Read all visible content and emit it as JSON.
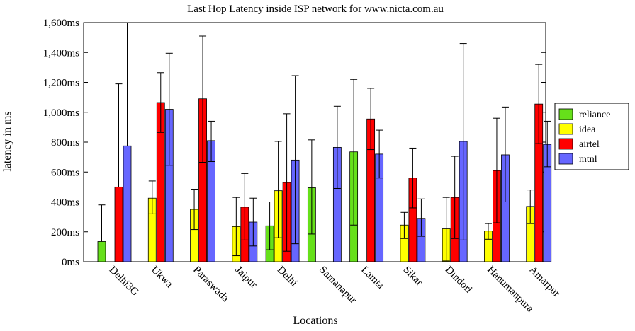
{
  "chart_data": {
    "type": "bar",
    "title": "Last Hop Latency inside ISP network for www.nicta.com.au",
    "xlabel": "Locations",
    "ylabel": "latency in ms",
    "ylim": [
      0,
      1600
    ],
    "yticks": [
      "0ms",
      "200ms",
      "400ms",
      "600ms",
      "800ms",
      "1,000ms",
      "1,200ms",
      "1,400ms",
      "1,600ms"
    ],
    "categories": [
      "Delhi3G",
      "Ukwa",
      "Paraswada",
      "Jaipur",
      "Delhi",
      "Samanapur",
      "Lamta",
      "Sikar",
      "Dindori",
      "Hanumanpura",
      "Amarpur"
    ],
    "legend_position": "right",
    "grid": false,
    "series": [
      {
        "name": "reliance",
        "color": "#66e01a",
        "values": [
          135,
          null,
          null,
          null,
          240,
          495,
          735,
          null,
          null,
          null,
          null
        ],
        "err_low": [
          null,
          null,
          null,
          null,
          80,
          185,
          245,
          null,
          null,
          null,
          null
        ],
        "err_high": [
          380,
          null,
          null,
          null,
          400,
          815,
          1220,
          null,
          null,
          null,
          null
        ]
      },
      {
        "name": "idea",
        "color": "#ffff00",
        "values": [
          null,
          425,
          350,
          235,
          475,
          null,
          null,
          245,
          220,
          205,
          370
        ],
        "err_low": [
          null,
          320,
          215,
          40,
          160,
          null,
          null,
          155,
          5,
          150,
          255
        ],
        "err_high": [
          null,
          540,
          485,
          430,
          805,
          null,
          null,
          330,
          430,
          255,
          480
        ]
      },
      {
        "name": "airtel",
        "color": "#ff0000",
        "values": [
          500,
          1065,
          1090,
          365,
          530,
          null,
          955,
          560,
          430,
          610,
          1055
        ],
        "err_low": [
          null,
          865,
          665,
          145,
          70,
          null,
          750,
          360,
          155,
          260,
          790
        ],
        "err_high": [
          1190,
          1265,
          1510,
          590,
          990,
          null,
          1160,
          760,
          705,
          960,
          1320
        ]
      },
      {
        "name": "mtnl",
        "color": "#6666ff",
        "values": [
          775,
          1020,
          810,
          265,
          680,
          765,
          720,
          290,
          805,
          715,
          785
        ],
        "err_low": [
          null,
          645,
          670,
          105,
          120,
          490,
          560,
          170,
          145,
          400,
          635
        ],
        "err_high": [
          1600,
          1395,
          940,
          425,
          1245,
          1040,
          880,
          420,
          1460,
          1035,
          940
        ]
      }
    ]
  }
}
